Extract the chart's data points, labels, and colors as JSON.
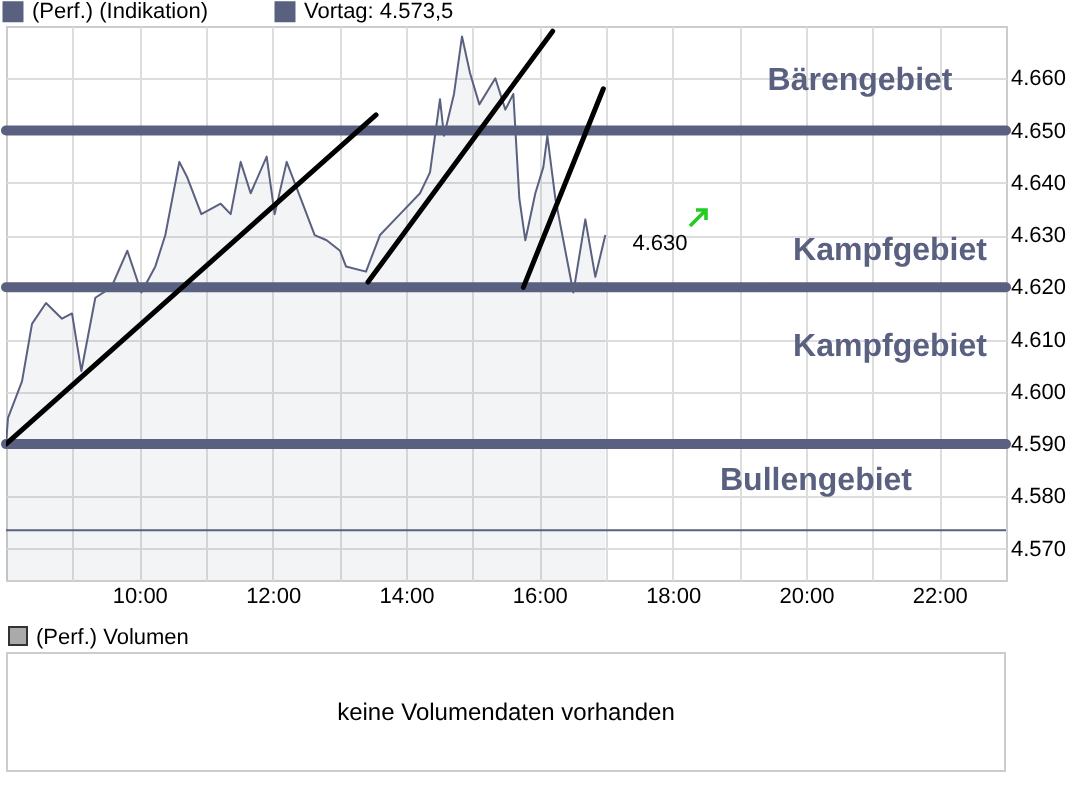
{
  "chart_data": [
    {
      "type": "area",
      "xlim": [
        8,
        23
      ],
      "xticks": [
        {
          "value": 9,
          "label": null
        },
        {
          "value": 10,
          "label": "10:00"
        },
        {
          "value": 11,
          "label": null
        },
        {
          "value": 12,
          "label": "12:00"
        },
        {
          "value": 13,
          "label": null
        },
        {
          "value": 14,
          "label": "14:00"
        },
        {
          "value": 15,
          "label": null
        },
        {
          "value": 16,
          "label": "16:00"
        },
        {
          "value": 17,
          "label": null
        },
        {
          "value": 18,
          "label": "18:00"
        },
        {
          "value": 19,
          "label": null
        },
        {
          "value": 20,
          "label": "20:00"
        },
        {
          "value": 21,
          "label": null
        },
        {
          "value": 22,
          "label": "22:00"
        }
      ],
      "ylim": [
        4564,
        4670
      ],
      "yticks": [
        {
          "value": 4570,
          "label": "4.570"
        },
        {
          "value": 4580,
          "label": "4.580"
        },
        {
          "value": 4590,
          "label": "4.590"
        },
        {
          "value": 4600,
          "label": "4.600"
        },
        {
          "value": 4610,
          "label": "4.610"
        },
        {
          "value": 4620,
          "label": "4.620"
        },
        {
          "value": 4630,
          "label": "4.630"
        },
        {
          "value": 4640,
          "label": "4.640"
        },
        {
          "value": 4650,
          "label": "4.650"
        },
        {
          "value": 4660,
          "label": "4.660"
        }
      ],
      "grid": true,
      "legend": "top left",
      "series": [
        {
          "name": "(Perf.) (Indikation)",
          "color": "#5a6080",
          "x": [
            8.0,
            8.03,
            8.24,
            8.39,
            8.6,
            8.84,
            8.99,
            9.13,
            9.34,
            9.58,
            9.82,
            10.03,
            10.24,
            10.39,
            10.6,
            10.72,
            10.93,
            11.22,
            11.37,
            11.52,
            11.67,
            11.91,
            12.03,
            12.21,
            12.42,
            12.63,
            12.81,
            13.01,
            13.1,
            13.4,
            13.61,
            13.91,
            14.21,
            14.36,
            14.51,
            14.57,
            14.72,
            14.84,
            14.96,
            15.1,
            15.34,
            15.49,
            15.61,
            15.7,
            15.79,
            15.94,
            16.06,
            16.12,
            16.24,
            16.51,
            16.69,
            16.84,
            16.99
          ],
          "values": [
            4590,
            4595,
            4602,
            4613,
            4617,
            4614,
            4615,
            4604,
            4618,
            4620,
            4627,
            4619,
            4624,
            4630,
            4644,
            4641,
            4634,
            4636,
            4634,
            4644,
            4638,
            4645,
            4634,
            4644,
            4637,
            4630,
            4629,
            4627,
            4624,
            4623,
            4630,
            4634,
            4638,
            4642,
            4656,
            4649,
            4657,
            4668,
            4661,
            4655,
            4660,
            4654,
            4657,
            4637,
            4629,
            4638,
            4643,
            4649,
            4637,
            4619,
            4633,
            4622,
            4630
          ]
        },
        {
          "name": "Vortag: 4.573,5",
          "type": "line",
          "color": "#5a6080",
          "x": [
            8,
            23
          ],
          "values": [
            4573.5,
            4573.5
          ]
        },
        {
          "type": "line",
          "color": "#000000",
          "x": [
            8.0,
            13.55
          ],
          "values": [
            4590,
            4653
          ]
        },
        {
          "type": "line",
          "color": "#000000",
          "x": [
            13.43,
            16.2
          ],
          "values": [
            4621,
            4669
          ]
        },
        {
          "type": "line",
          "color": "#000000",
          "x": [
            15.76,
            16.96
          ],
          "values": [
            4620,
            4658
          ]
        }
      ],
      "ref_lines": [
        {
          "axis": "y",
          "value": 4650,
          "color": "#5a6080"
        },
        {
          "axis": "y",
          "value": 4620,
          "color": "#5a6080"
        },
        {
          "axis": "y",
          "value": 4590,
          "color": "#5a6080"
        }
      ],
      "annotations": [
        "4.630",
        "Bärengebiet",
        "Kampfgebiet",
        "Kampfgebiet",
        "Bullengebiet"
      ]
    },
    {
      "type": "other",
      "title": "(Perf.) Volumen",
      "annotations": [
        "keine Volumendaten vorhanden"
      ]
    }
  ]
}
